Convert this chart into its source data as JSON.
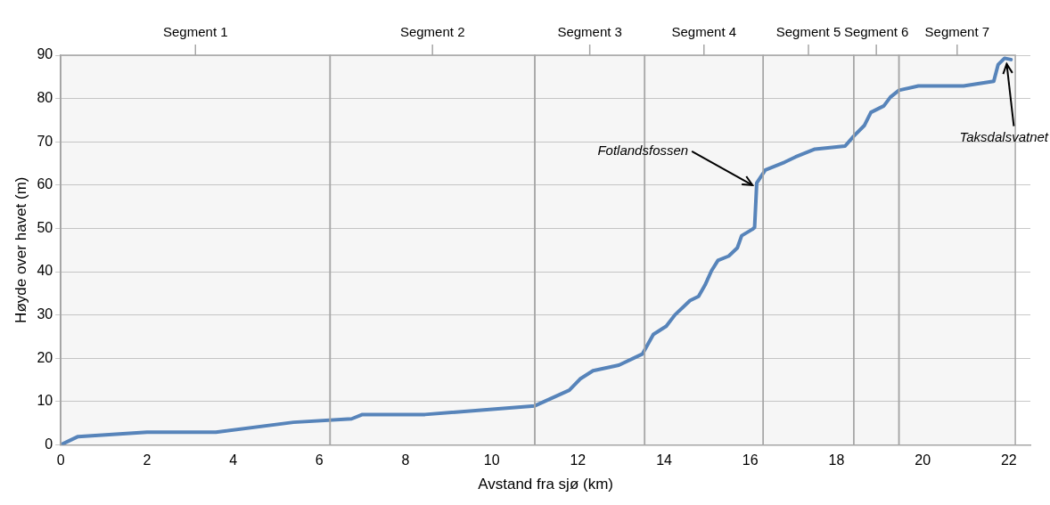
{
  "chart_data": {
    "type": "line",
    "xlabel": "Avstand fra sjø (km)",
    "ylabel": "Høyde over havet (m)",
    "xlim": [
      0,
      22.5
    ],
    "xticks": [
      0,
      2,
      4,
      6,
      8,
      10,
      12,
      14,
      16,
      18,
      20,
      22
    ],
    "ylim": [
      0,
      90
    ],
    "yticks": [
      0,
      10,
      20,
      30,
      40,
      50,
      60,
      70,
      80,
      90
    ],
    "grid": "y",
    "legend": false,
    "marker": "none",
    "line_style": "solid",
    "series": [
      {
        "color": "#4f81bd",
        "x": [
          0,
          0.4,
          2,
          3.6,
          5.4,
          6.75,
          7.0,
          8.45,
          11.0,
          11.8,
          12.05,
          12.35,
          12.95,
          13.5,
          13.75,
          14.05,
          14.25,
          14.6,
          14.8,
          14.95,
          15.1,
          15.25,
          15.5,
          15.7,
          15.8,
          16.05,
          16.1,
          16.15,
          16.35,
          16.8,
          17.05,
          17.5,
          18.2,
          18.4,
          18.65,
          18.8,
          19.1,
          19.25,
          19.45,
          19.9,
          20.95,
          21.65,
          21.75,
          21.9,
          22.05
        ],
        "values": [
          0,
          1.9,
          2.9,
          2.9,
          5.2,
          6,
          7,
          7,
          9,
          12.6,
          15.2,
          17.1,
          18.4,
          21,
          25.5,
          27.4,
          30,
          33.3,
          34.3,
          36.9,
          40.2,
          42.6,
          43.6,
          45.5,
          48.3,
          49.8,
          50.2,
          60.5,
          63.5,
          65.3,
          66.5,
          68.3,
          69,
          71.3,
          73.8,
          76.8,
          78.3,
          80.3,
          81.9,
          82.9,
          82.9,
          84,
          87.8,
          89.3,
          89
        ]
      }
    ],
    "bands": [
      {
        "axis": "x",
        "from": 0,
        "to": 6.25,
        "label": "Segment 1",
        "color": "#a6a6a6"
      },
      {
        "axis": "x",
        "from": 6.25,
        "to": 11.0,
        "label": "Segment 2",
        "color": "#a6a6a6"
      },
      {
        "axis": "x",
        "from": 11.0,
        "to": 13.55,
        "label": "Segment 3",
        "color": "#a6a6a6"
      },
      {
        "axis": "x",
        "from": 13.55,
        "to": 16.3,
        "label": "Segment 4",
        "color": "#a6a6a6"
      },
      {
        "axis": "x",
        "from": 16.3,
        "to": 18.4,
        "label": "Segment 5",
        "color": "#a6a6a6"
      },
      {
        "axis": "x",
        "from": 18.4,
        "to": 19.45,
        "label": "Segment 6",
        "color": "#a6a6a6"
      },
      {
        "axis": "x",
        "from": 19.45,
        "to": 22.15,
        "label": "Segment 7",
        "color": "#a6a6a6"
      }
    ],
    "annotations": [
      {
        "text": "Fotlandsfossen",
        "x": 16.05,
        "y": 60
      },
      {
        "text": "Taksdalsvatnet",
        "x": 21.95,
        "y": 88
      }
    ]
  }
}
